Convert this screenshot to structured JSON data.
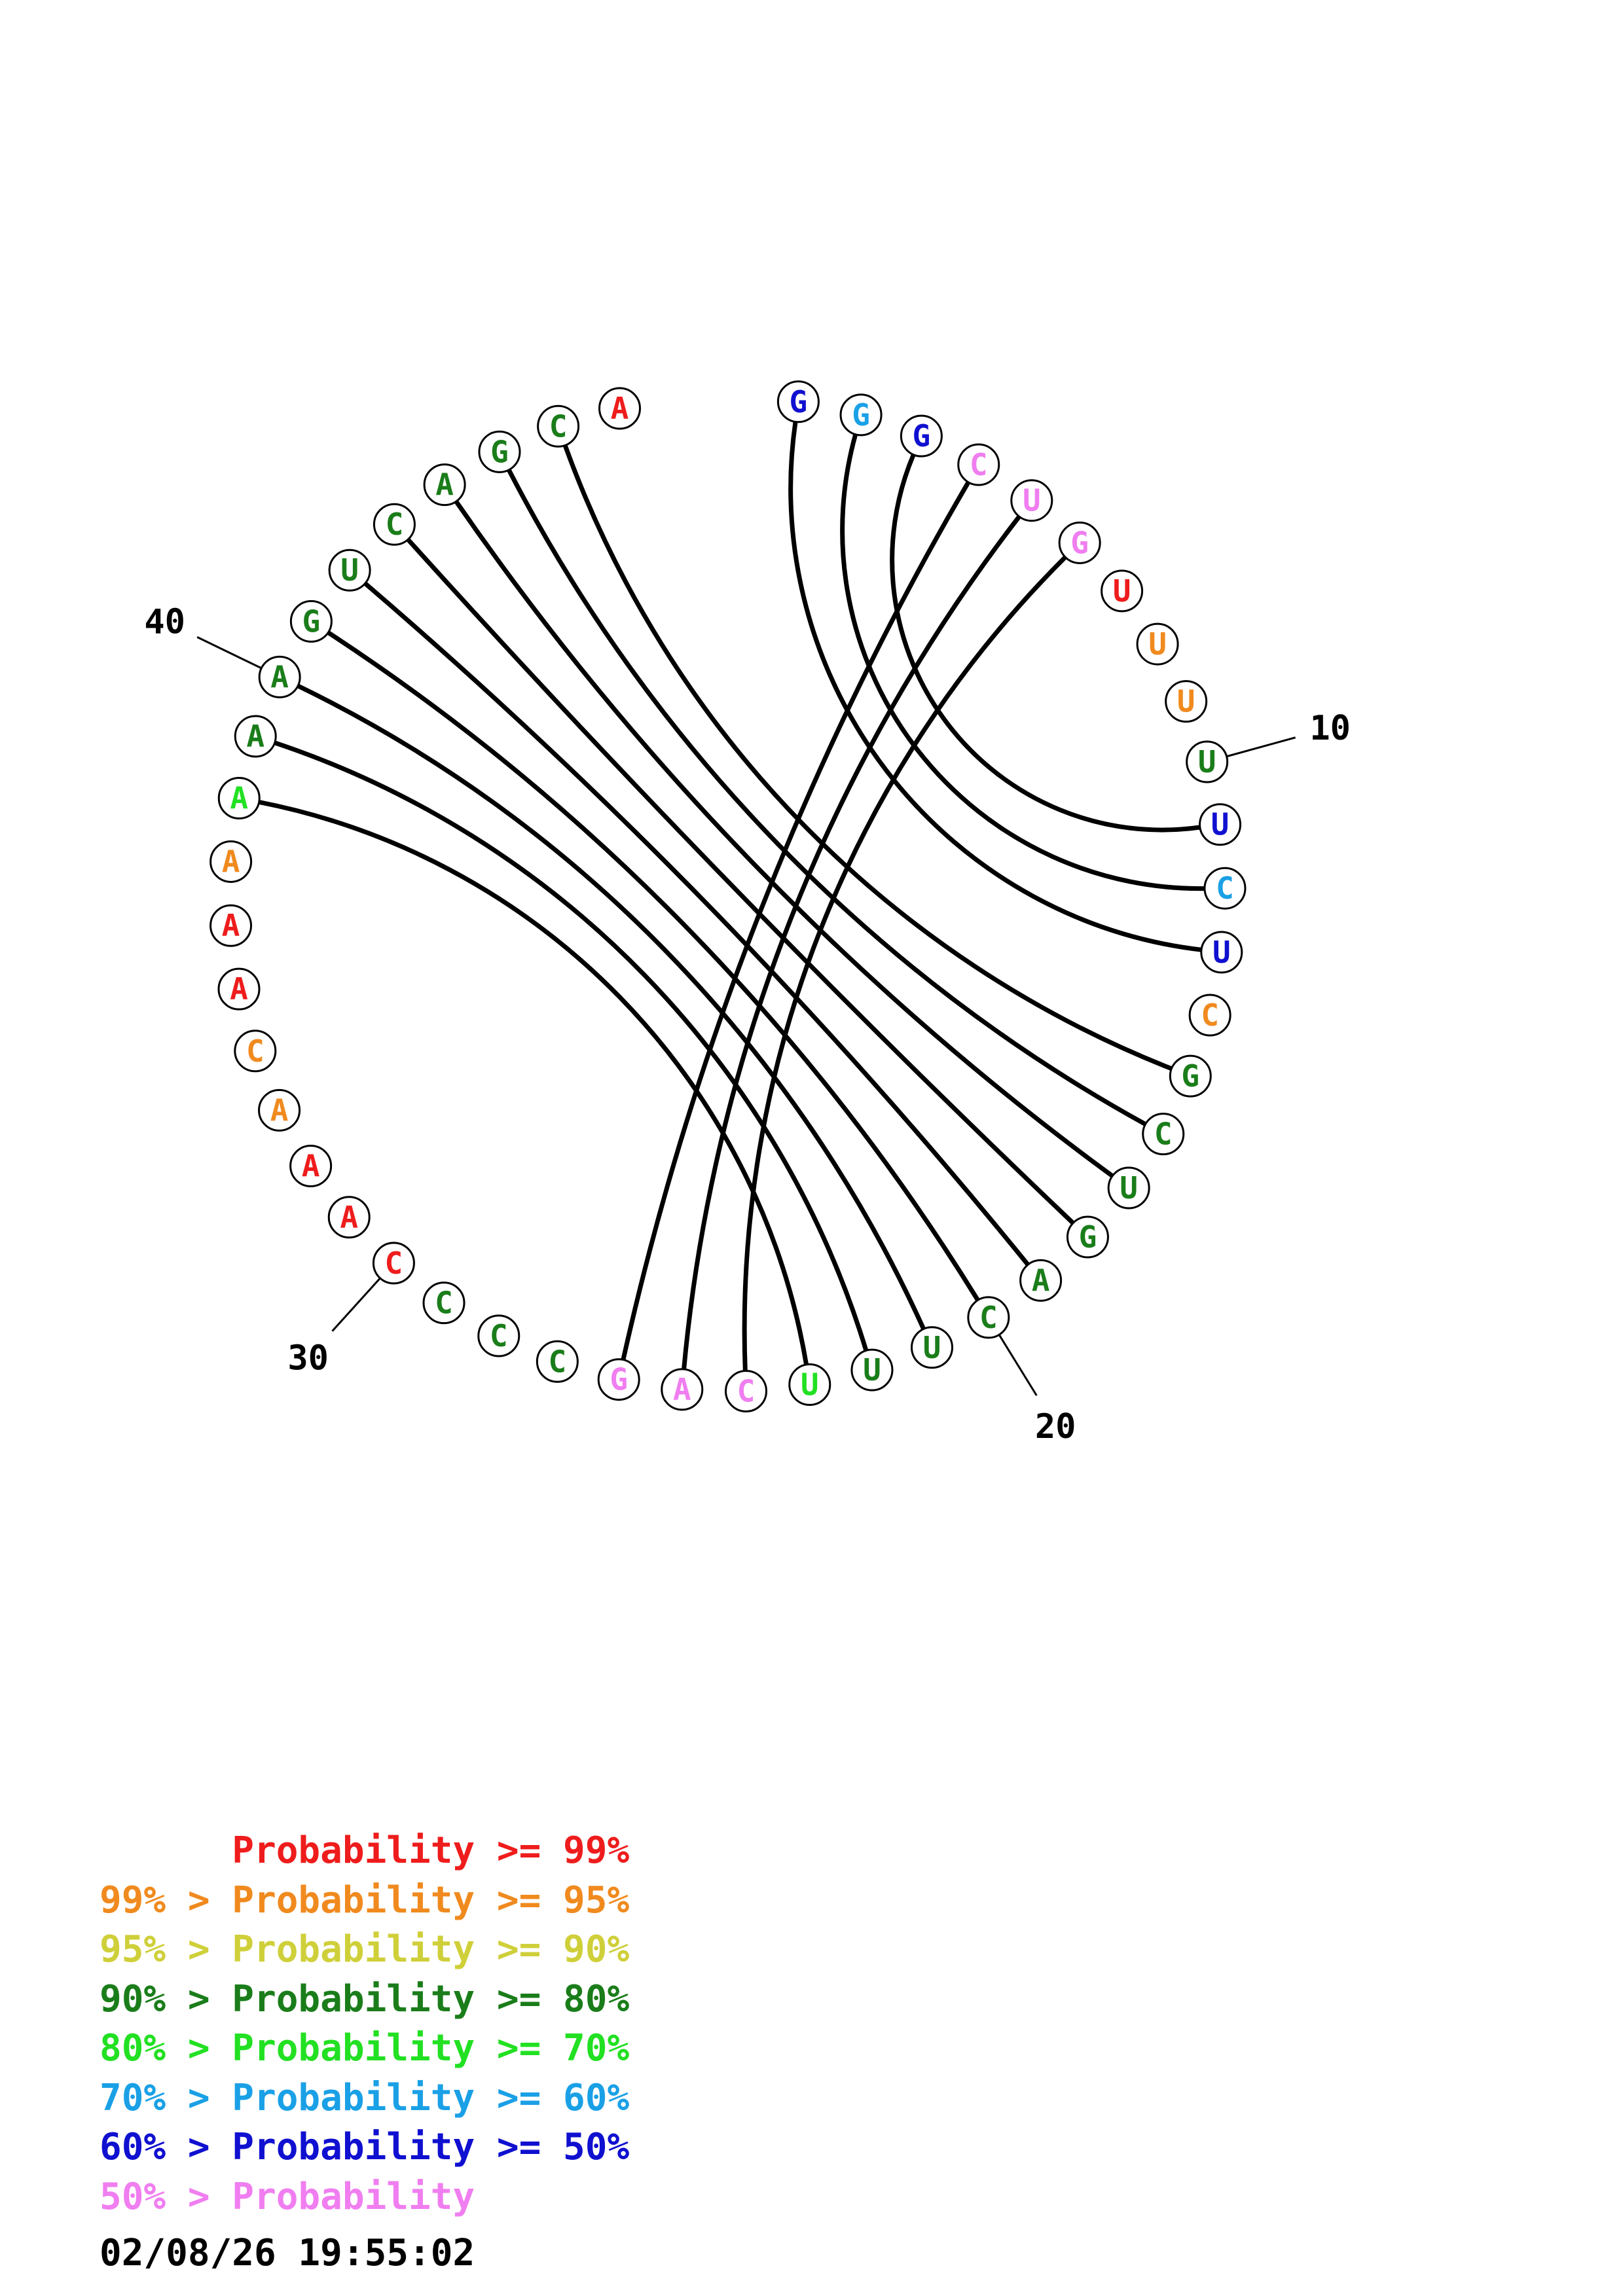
{
  "colors": {
    "p99": "#ee1c1c",
    "p95": "#f08a1e",
    "p90": "#cfcf3a",
    "p80": "#1a7d1a",
    "p70": "#22e022",
    "p60": "#1aa0e6",
    "p50": "#1010d0",
    "plt50": "#f07ef0"
  },
  "sequence": [
    {
      "n": 1,
      "base": "G",
      "color": "p50"
    },
    {
      "n": 2,
      "base": "G",
      "color": "p60"
    },
    {
      "n": 3,
      "base": "G",
      "color": "p50"
    },
    {
      "n": 4,
      "base": "C",
      "color": "plt50"
    },
    {
      "n": 5,
      "base": "U",
      "color": "plt50"
    },
    {
      "n": 6,
      "base": "G",
      "color": "plt50"
    },
    {
      "n": 7,
      "base": "U",
      "color": "p99"
    },
    {
      "n": 8,
      "base": "U",
      "color": "p95"
    },
    {
      "n": 9,
      "base": "U",
      "color": "p95"
    },
    {
      "n": 10,
      "base": "U",
      "color": "p80"
    },
    {
      "n": 11,
      "base": "U",
      "color": "p50"
    },
    {
      "n": 12,
      "base": "C",
      "color": "p60"
    },
    {
      "n": 13,
      "base": "U",
      "color": "p50"
    },
    {
      "n": 14,
      "base": "C",
      "color": "p95"
    },
    {
      "n": 15,
      "base": "G",
      "color": "p80"
    },
    {
      "n": 16,
      "base": "C",
      "color": "p80"
    },
    {
      "n": 17,
      "base": "U",
      "color": "p80"
    },
    {
      "n": 18,
      "base": "G",
      "color": "p80"
    },
    {
      "n": 19,
      "base": "A",
      "color": "p80"
    },
    {
      "n": 20,
      "base": "C",
      "color": "p80"
    },
    {
      "n": 21,
      "base": "U",
      "color": "p80"
    },
    {
      "n": 22,
      "base": "U",
      "color": "p80"
    },
    {
      "n": 23,
      "base": "U",
      "color": "p70"
    },
    {
      "n": 24,
      "base": "C",
      "color": "plt50"
    },
    {
      "n": 25,
      "base": "A",
      "color": "plt50"
    },
    {
      "n": 26,
      "base": "G",
      "color": "plt50"
    },
    {
      "n": 27,
      "base": "C",
      "color": "p80"
    },
    {
      "n": 28,
      "base": "C",
      "color": "p80"
    },
    {
      "n": 29,
      "base": "C",
      "color": "p80"
    },
    {
      "n": 30,
      "base": "C",
      "color": "p99"
    },
    {
      "n": 31,
      "base": "A",
      "color": "p99"
    },
    {
      "n": 32,
      "base": "A",
      "color": "p99"
    },
    {
      "n": 33,
      "base": "A",
      "color": "p95"
    },
    {
      "n": 34,
      "base": "C",
      "color": "p95"
    },
    {
      "n": 35,
      "base": "A",
      "color": "p99"
    },
    {
      "n": 36,
      "base": "A",
      "color": "p99"
    },
    {
      "n": 37,
      "base": "A",
      "color": "p95"
    },
    {
      "n": 38,
      "base": "A",
      "color": "p70"
    },
    {
      "n": 39,
      "base": "A",
      "color": "p80"
    },
    {
      "n": 40,
      "base": "A",
      "color": "p80"
    },
    {
      "n": 41,
      "base": "G",
      "color": "p80"
    },
    {
      "n": 42,
      "base": "U",
      "color": "p80"
    },
    {
      "n": 43,
      "base": "C",
      "color": "p80"
    },
    {
      "n": 44,
      "base": "A",
      "color": "p80"
    },
    {
      "n": 45,
      "base": "G",
      "color": "p80"
    },
    {
      "n": 46,
      "base": "C",
      "color": "p80"
    },
    {
      "n": 47,
      "base": "A",
      "color": "p99"
    }
  ],
  "pairs": [
    [
      1,
      13
    ],
    [
      2,
      12
    ],
    [
      3,
      11
    ],
    [
      4,
      26
    ],
    [
      5,
      25
    ],
    [
      6,
      24
    ],
    [
      15,
      46
    ],
    [
      16,
      45
    ],
    [
      17,
      44
    ],
    [
      18,
      43
    ],
    [
      19,
      42
    ],
    [
      20,
      41
    ],
    [
      21,
      40
    ],
    [
      22,
      39
    ],
    [
      23,
      38
    ]
  ],
  "tick_labels": [
    {
      "n": 10,
      "text": "10"
    },
    {
      "n": 20,
      "text": "20"
    },
    {
      "n": 30,
      "text": "30"
    },
    {
      "n": 40,
      "text": "40"
    }
  ],
  "legend": [
    {
      "text": "      Probability >= 99%",
      "color": "p99"
    },
    {
      "text": "99% > Probability >= 95%",
      "color": "p95"
    },
    {
      "text": "95% > Probability >= 90%",
      "color": "p90"
    },
    {
      "text": "90% > Probability >= 80%",
      "color": "p80"
    },
    {
      "text": "80% > Probability >= 70%",
      "color": "p70"
    },
    {
      "text": "70% > Probability >= 60%",
      "color": "p60"
    },
    {
      "text": "60% > Probability >= 50%",
      "color": "p50"
    },
    {
      "text": "50% > Probability",
      "color": "plt50"
    }
  ],
  "timestamp": "02/08/26 19:55:02"
}
